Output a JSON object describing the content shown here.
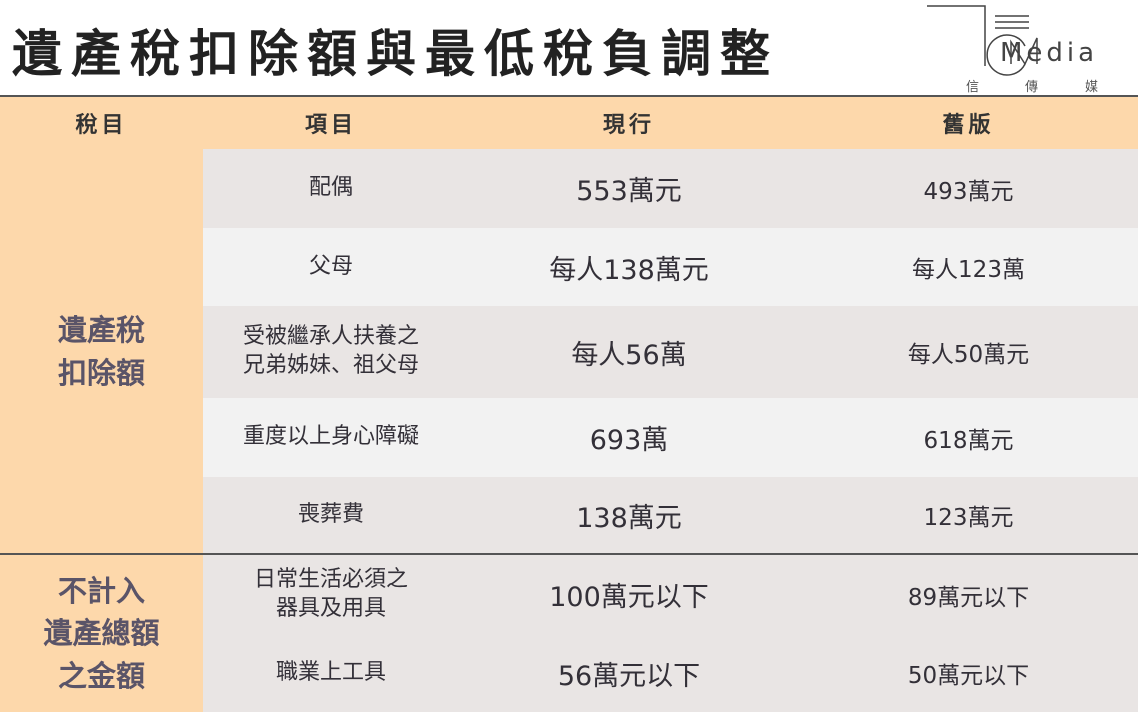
{
  "title": "遺產稅扣除額與最低稅負調整",
  "logo": {
    "text": "Media",
    "sub": [
      "信",
      "傳",
      "媒"
    ]
  },
  "colors": {
    "header": "#fdd8ab",
    "row_grey": "#e9e5e4",
    "row_light": "#f2f2f2",
    "category_text": "#5a5468"
  },
  "headers": [
    "稅目",
    "項目",
    "現行",
    "舊版"
  ],
  "sections": [
    {
      "category": [
        "遺產稅",
        "扣除額"
      ],
      "rows": [
        {
          "item": [
            "配偶"
          ],
          "current": "553萬元",
          "old": "493萬元"
        },
        {
          "item": [
            "父母"
          ],
          "current": "每人138萬元",
          "old": "每人123萬"
        },
        {
          "item": [
            "受被繼承人扶養之",
            "兄弟姊妹、祖父母"
          ],
          "current": "每人56萬",
          "old": "每人50萬元"
        },
        {
          "item": [
            "重度以上身心障礙"
          ],
          "current": "693萬",
          "old": "618萬元"
        },
        {
          "item": [
            "喪葬費"
          ],
          "current": "138萬元",
          "old": "123萬元"
        }
      ]
    },
    {
      "category": [
        "不計入",
        "遺產總額",
        "之金額"
      ],
      "rows": [
        {
          "item": [
            "日常生活必須之",
            "器具及用具"
          ],
          "current": "100萬元以下",
          "old": "89萬元以下"
        },
        {
          "item": [
            "職業上工具"
          ],
          "current": "56萬元以下",
          "old": "50萬元以下"
        }
      ]
    }
  ]
}
